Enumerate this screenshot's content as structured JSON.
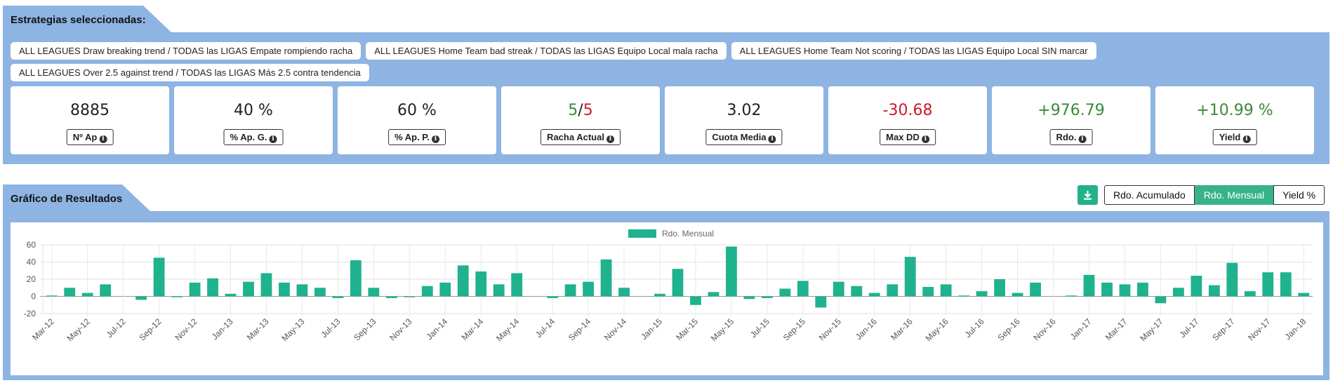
{
  "section1": {
    "title": "Estrategias seleccionadas:"
  },
  "strategies": [
    "ALL LEAGUES Draw breaking trend / TODAS las LIGAS Empate rompiendo racha",
    "ALL LEAGUES Home Team bad streak / TODAS las LIGAS Equipo Local mala racha",
    "ALL LEAGUES Home Team Not scoring / TODAS las LIGAS Equipo Local SIN marcar",
    "ALL LEAGUES Over 2.5 against trend / TODAS las LIGAS Más 2.5 contra tendencia"
  ],
  "stats": {
    "n_ap": {
      "value": "8885",
      "label": "Nº Ap"
    },
    "ap_g": {
      "value": "40 %",
      "label": "% Ap. G."
    },
    "ap_p": {
      "value": "60 %",
      "label": "% Ap. P."
    },
    "racha": {
      "win": "5",
      "sep": "/",
      "loss": "5",
      "label": "Racha Actual"
    },
    "cuota": {
      "value": "3.02",
      "label": "Cuota Media"
    },
    "maxdd": {
      "value": "-30.68",
      "label": "Max DD"
    },
    "rdo": {
      "value": "+976.79",
      "label": "Rdo."
    },
    "yield": {
      "value": "+10.99 %",
      "label": "Yield"
    }
  },
  "info_icon_glyph": "i",
  "colors": {
    "positive": "#3a8a3a",
    "negative": "#cc1a2a",
    "bar": "#1fb28e",
    "panel": "#8db4e2",
    "active_button": "#37b28b"
  },
  "section2": {
    "title": "Gráfico de Resultados"
  },
  "chart_buttons": {
    "download_icon": "download-icon",
    "acumulado": "Rdo. Acumulado",
    "mensual": "Rdo. Mensual",
    "yield": "Yield %",
    "active": "Rdo. Mensual"
  },
  "chart_data": {
    "type": "bar",
    "legend": [
      "Rdo. Mensual"
    ],
    "legend_position": "top-center",
    "grid": true,
    "ylim": [
      -20,
      60
    ],
    "yticks": [
      60,
      40,
      20,
      0,
      -20
    ],
    "xtick_labels": [
      "Mar-12",
      "May-12",
      "Jul-12",
      "Sep-12",
      "Nov-12",
      "Jan-13",
      "Mar-13",
      "May-13",
      "Jul-13",
      "Sep-13",
      "Nov-13",
      "Jan-14",
      "Mar-14",
      "May-14",
      "Jul-14",
      "Sep-14",
      "Nov-14",
      "Jan-15",
      "Mar-15",
      "May-15",
      "Jul-15",
      "Sep-15",
      "Nov-15",
      "Jan-16",
      "Mar-16",
      "May-16",
      "Jul-16",
      "Sep-16",
      "Nov-16",
      "Jan-17",
      "Mar-17",
      "May-17",
      "Jul-17",
      "Sep-17",
      "Nov-17",
      "Jan-18"
    ],
    "series": [
      {
        "name": "Rdo. Mensual",
        "x": [
          "Mar-12",
          "Apr-12",
          "May-12",
          "Jun-12",
          "Jul-12",
          "Aug-12",
          "Sep-12",
          "Oct-12",
          "Nov-12",
          "Dec-12",
          "Jan-13",
          "Feb-13",
          "Mar-13",
          "Apr-13",
          "May-13",
          "Jun-13",
          "Jul-13",
          "Aug-13",
          "Sep-13",
          "Oct-13",
          "Nov-13",
          "Dec-13",
          "Jan-14",
          "Feb-14",
          "Mar-14",
          "Apr-14",
          "May-14",
          "Jun-14",
          "Jul-14",
          "Aug-14",
          "Sep-14",
          "Oct-14",
          "Nov-14",
          "Dec-14",
          "Jan-15",
          "Feb-15",
          "Mar-15",
          "Apr-15",
          "May-15",
          "Jun-15",
          "Jul-15",
          "Aug-15",
          "Sep-15",
          "Oct-15",
          "Nov-15",
          "Dec-15",
          "Jan-16",
          "Feb-16",
          "Mar-16",
          "Apr-16",
          "May-16",
          "Jun-16",
          "Jul-16",
          "Aug-16",
          "Sep-16",
          "Oct-16",
          "Nov-16",
          "Dec-16",
          "Jan-17",
          "Feb-17",
          "Mar-17",
          "Apr-17",
          "May-17",
          "Jun-17",
          "Jul-17",
          "Aug-17",
          "Sep-17",
          "Oct-17",
          "Nov-17",
          "Dec-17",
          "Jan-18"
        ],
        "values": [
          1,
          10,
          4,
          14,
          0,
          -4,
          45,
          -1,
          16,
          21,
          3,
          17,
          27,
          16,
          14,
          10,
          -2,
          42,
          10,
          -2,
          -1,
          12,
          16,
          36,
          29,
          14,
          27,
          0,
          -2,
          14,
          17,
          43,
          10,
          0,
          3,
          32,
          -10,
          5,
          58,
          -3,
          -2,
          9,
          18,
          -13,
          17,
          12,
          4,
          14,
          46,
          11,
          14,
          1,
          6,
          20,
          4,
          16,
          0,
          1,
          25,
          16,
          14,
          16,
          -8,
          10,
          24,
          13,
          39,
          6,
          28,
          28,
          4
        ]
      }
    ]
  }
}
